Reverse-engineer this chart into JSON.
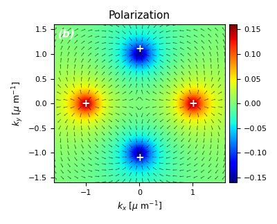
{
  "title": "Polarization",
  "xlabel": "k_x [μ m⁻¹]",
  "ylabel": "k_y [μ m⁻¹]",
  "xlim": [
    -1.6,
    1.6
  ],
  "ylim": [
    -1.6,
    1.6
  ],
  "clim": [
    -0.16,
    0.16
  ],
  "plus_positions": [
    [
      -1.0,
      0.0
    ],
    [
      1.0,
      0.0
    ],
    [
      0.0,
      1.1
    ],
    [
      0.0,
      -1.1
    ]
  ],
  "label": "(b)",
  "n_grid": 80,
  "arrow_grid": 26,
  "valley_kv": 1.0,
  "delta": 0.15,
  "background_color": "#ffffff",
  "colorbar_ticks": [
    -0.15,
    -0.1,
    -0.05,
    0.0,
    0.05,
    0.1,
    0.15
  ]
}
